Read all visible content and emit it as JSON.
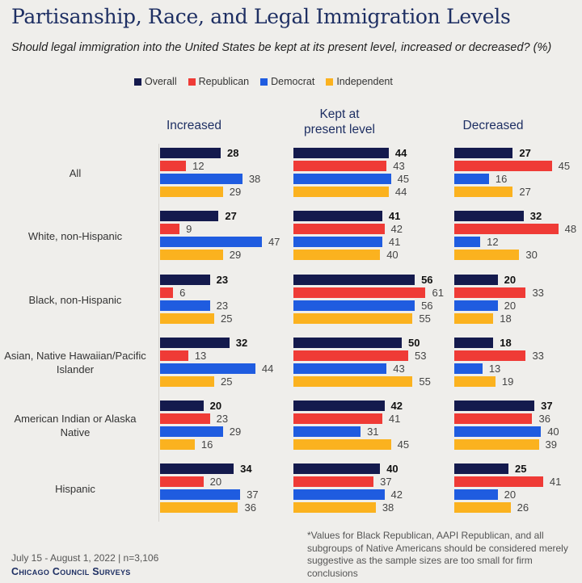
{
  "chart_data": {
    "type": "bar",
    "title": "Partisanship, Race, and Legal Immigration Levels",
    "subtitle": "Should legal immigration into the United States be kept at its present level, increased or decreased? (%)",
    "legend": [
      "Overall",
      "Republican",
      "Democrat",
      "Independent"
    ],
    "colors": {
      "Overall": "#141a4d",
      "Republican": "#ef3b36",
      "Democrat": "#1f5ce0",
      "Independent": "#fbb21f"
    },
    "panels": [
      "Increased",
      "Kept at present level",
      "Decreased"
    ],
    "categories": [
      "All",
      "White, non-Hispanic",
      "Black, non-Hispanic",
      "Asian, Native Hawaiian/Pacific Islander",
      "American Indian or Alaska Native",
      "Hispanic"
    ],
    "values": {
      "Increased": [
        [
          28,
          12,
          38,
          29
        ],
        [
          27,
          9,
          47,
          29
        ],
        [
          23,
          6,
          23,
          25
        ],
        [
          32,
          13,
          44,
          25
        ],
        [
          20,
          23,
          29,
          16
        ],
        [
          34,
          20,
          37,
          36
        ]
      ],
      "Kept at present level": [
        [
          44,
          43,
          45,
          44
        ],
        [
          41,
          42,
          41,
          40
        ],
        [
          56,
          61,
          56,
          55
        ],
        [
          50,
          53,
          43,
          55
        ],
        [
          42,
          41,
          31,
          45
        ],
        [
          40,
          37,
          42,
          38
        ]
      ],
      "Decreased": [
        [
          27,
          45,
          16,
          27
        ],
        [
          32,
          48,
          12,
          30
        ],
        [
          20,
          33,
          20,
          18
        ],
        [
          18,
          33,
          13,
          19
        ],
        [
          37,
          36,
          40,
          39
        ],
        [
          25,
          41,
          20,
          26
        ]
      ]
    }
  },
  "colheads": [
    "Increased",
    "Kept at\npresent level",
    "Decreased"
  ],
  "footer": {
    "dates": "July 15 - August 1, 2022 | n=3,106",
    "brand": "Chicago Council Surveys",
    "note": "*Values for Black Republican, AAPI Republican, and all subgroups of Native Americans should be considered merely suggestive as the sample sizes are too small for firm conclusions"
  }
}
